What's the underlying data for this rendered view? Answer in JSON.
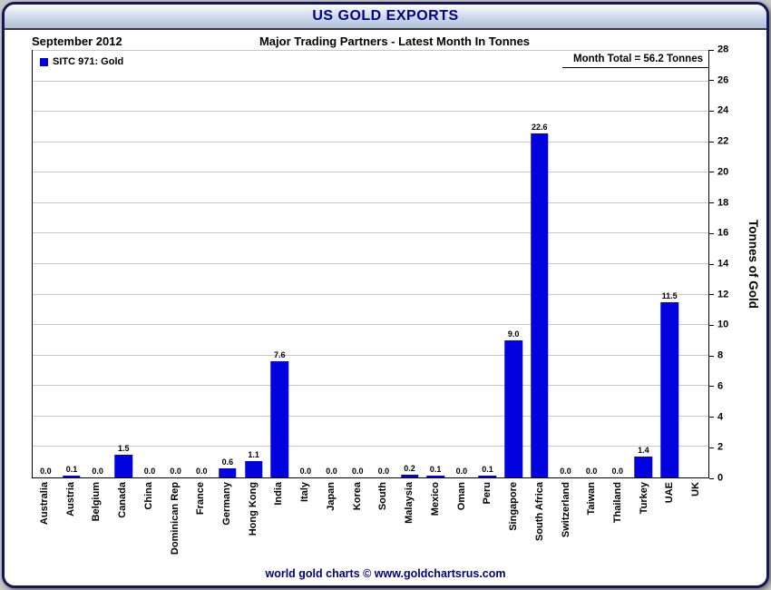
{
  "header": {
    "title": "US GOLD EXPORTS"
  },
  "footer": {
    "text": "world gold charts © www.goldchartsrus.com"
  },
  "chart_data": {
    "type": "bar",
    "title": "US GOLD EXPORTS",
    "period": "September 2012",
    "subtitle": "Major Trading Partners - Latest Month In Tonnes",
    "series_name": "SITC 971: Gold",
    "annotation": "Month Total = 56.2 Tonnes",
    "month_total_tonnes": 56.2,
    "ylabel": "Tonnes of Gold",
    "ylim": [
      0,
      28
    ],
    "ytick_step": 2,
    "grid": true,
    "legend_position": "top-left",
    "bar_color": "#0202DF",
    "categories": [
      "Australia",
      "Austria",
      "Belgium",
      "Canada",
      "China",
      "Dominican Rep",
      "France",
      "Germany",
      "Hong Kong",
      "India",
      "Italy",
      "Japan",
      "Korea",
      "South",
      "Malaysia",
      "Mexico",
      "Oman",
      "Peru",
      "Singapore",
      "South Africa",
      "Switzerland",
      "Taiwan",
      "Thailand",
      "Turkey",
      "UAE",
      "UK"
    ],
    "values": [
      0.0,
      0.1,
      0.0,
      1.5,
      0.0,
      0.0,
      0.0,
      0.6,
      1.1,
      7.6,
      0.0,
      0.0,
      0.0,
      0.0,
      0.2,
      0.1,
      0.0,
      0.1,
      9.0,
      22.6,
      0.0,
      0.0,
      0.0,
      1.4,
      11.5,
      0.0
    ],
    "bar_labels": [
      "0.0",
      "0.1",
      "0.0",
      "1.5",
      "0.0",
      "0.0",
      "0.0",
      "0.6",
      "1.1",
      "7.6",
      "0.0",
      "0.0",
      "0.0",
      "0.0",
      "0.2",
      "0.1",
      "0.0",
      "0.1",
      "9.0",
      "22.6",
      "0.0",
      "0.0",
      "0.0",
      "1.4",
      "11.5",
      ""
    ]
  }
}
